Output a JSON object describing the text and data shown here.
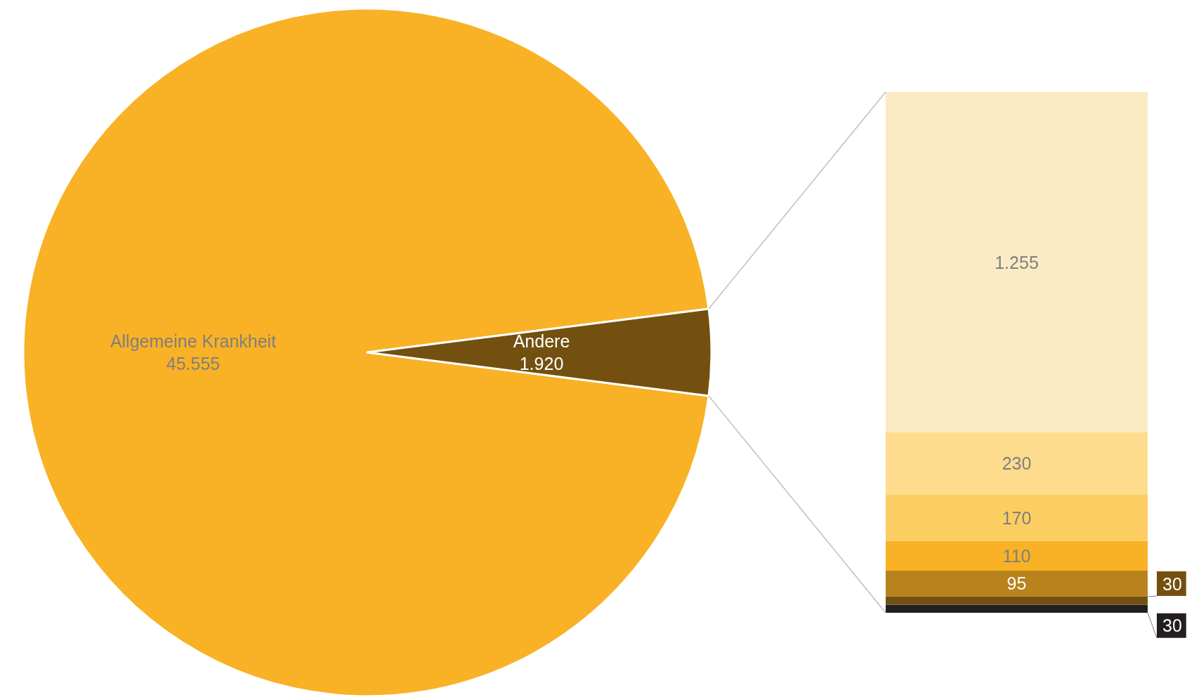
{
  "chart_data": [
    {
      "type": "pie",
      "categories": [
        "Allgemeine Krankheit",
        "Andere"
      ],
      "values": [
        45555,
        1920
      ],
      "value_labels": [
        "45.555",
        "1.920"
      ],
      "colors": [
        "#f9b125",
        "#735010"
      ],
      "legend": false
    },
    {
      "type": "bar",
      "stacked": true,
      "categories": [
        null
      ],
      "tick_labels": false,
      "legend": false,
      "series": [
        {
          "color": "#231f20",
          "values": [
            30
          ],
          "value_labels": [
            "30"
          ]
        },
        {
          "color": "#735010",
          "values": [
            30
          ],
          "value_labels": [
            "30"
          ]
        },
        {
          "color": "#b8821c",
          "values": [
            95
          ],
          "value_labels": [
            "95"
          ]
        },
        {
          "color": "#f9b125",
          "values": [
            110
          ],
          "value_labels": [
            "110"
          ]
        },
        {
          "color": "#fccd60",
          "values": [
            170
          ],
          "value_labels": [
            "170"
          ]
        },
        {
          "color": "#fddc8e",
          "values": [
            230
          ],
          "value_labels": [
            "230"
          ]
        },
        {
          "color": "#fbebc5",
          "values": [
            1255
          ],
          "value_labels": [
            "1.255"
          ]
        }
      ]
    }
  ]
}
